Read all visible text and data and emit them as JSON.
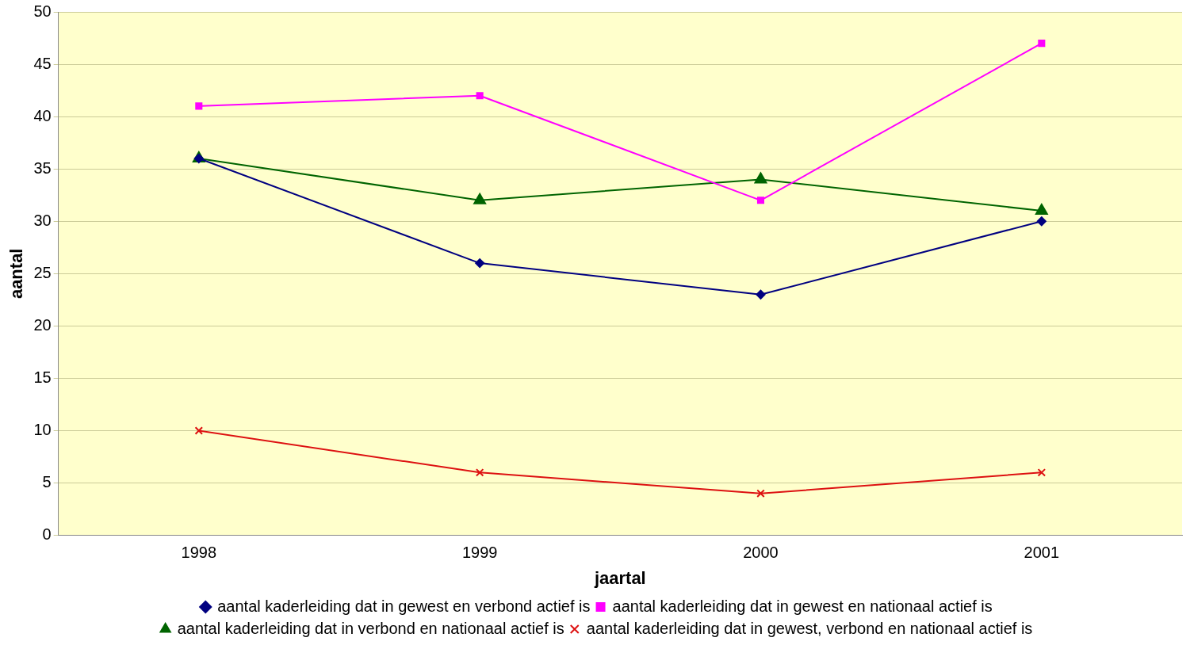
{
  "chart_data": {
    "type": "line",
    "xlabel": "jaartal",
    "ylabel": "aantal",
    "categories": [
      "1998",
      "1999",
      "2000",
      "2001"
    ],
    "series": [
      {
        "name": "aantal kaderleiding dat in gewest en verbond actief is",
        "color": "#000080",
        "marker": "diamond",
        "values": [
          36,
          26,
          23,
          30
        ]
      },
      {
        "name": "aantal kaderleiding dat in gewest en nationaal actief is",
        "color": "#ff00ff",
        "marker": "square",
        "values": [
          41,
          42,
          32,
          47
        ]
      },
      {
        "name": "aantal kaderleiding dat in verbond en nationaal actief is",
        "color": "#006400",
        "marker": "triangle",
        "values": [
          36,
          32,
          34,
          31
        ]
      },
      {
        "name": "aantal kaderleiding dat in gewest, verbond en nationaal actief is",
        "color": "#dd1111",
        "marker": "cross",
        "values": [
          10,
          6,
          4,
          6
        ]
      }
    ],
    "ylim": [
      0,
      50
    ],
    "yticks": [
      0,
      5,
      10,
      15,
      20,
      25,
      30,
      35,
      40,
      45,
      50
    ],
    "grid": "y",
    "legend": "bottom",
    "line_style": "solid"
  }
}
